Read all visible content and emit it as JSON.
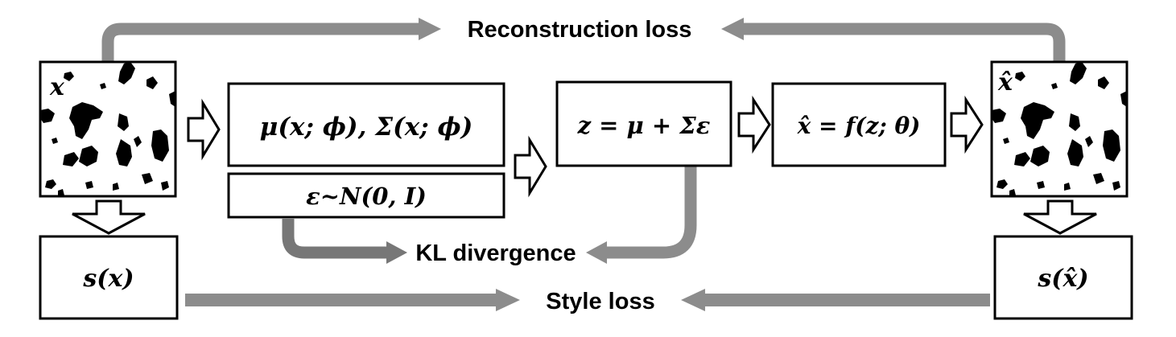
{
  "labels": {
    "reconstruction_loss": "Reconstruction loss",
    "kl_divergence": "KL divergence",
    "style_loss": "Style loss"
  },
  "image_labels": {
    "input": "x",
    "output": "x̂"
  },
  "boxes": {
    "encoder": "μ(x; ϕ), Σ(x; ϕ)",
    "noise": "ε~N(0, I)",
    "latent": "z = μ + Σε",
    "decoder": "x̂ = f(z; θ)",
    "style_input": "s(x)",
    "style_output": "s(x̂)"
  },
  "colors": {
    "loss_arrow": "#8c8c8c",
    "loss_arrow_dark": "#777777",
    "box_border": "#000000",
    "background": "#ffffff"
  }
}
